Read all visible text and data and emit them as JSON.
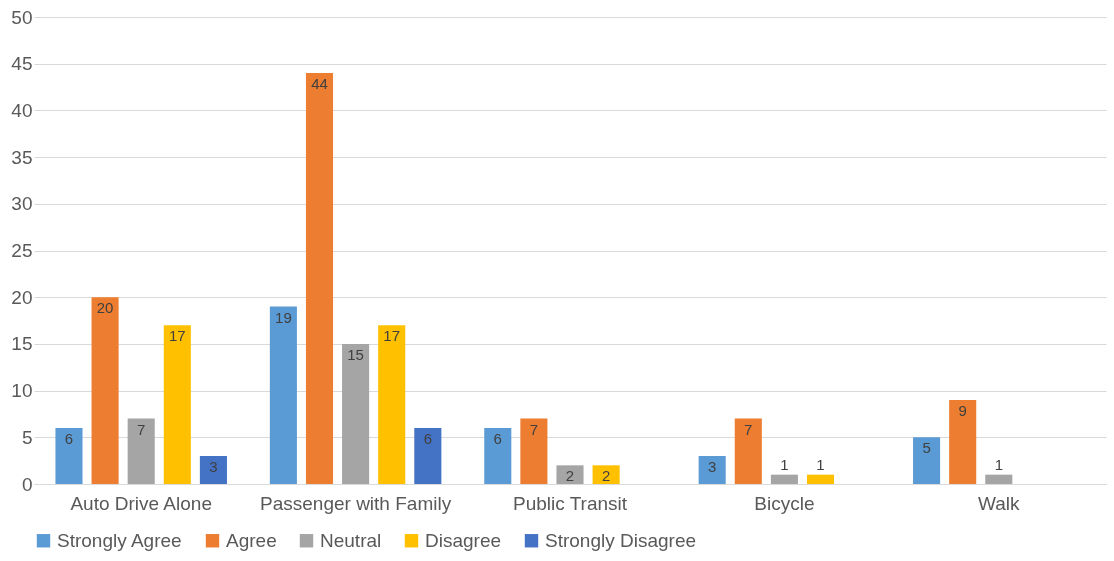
{
  "chart_data": {
    "type": "bar",
    "categories": [
      "Auto Drive Alone",
      "Passenger with Family",
      "Public Transit",
      "Bicycle",
      "Walk"
    ],
    "series": [
      {
        "name": "Strongly Agree",
        "color": "#5b9bd5",
        "values": [
          6,
          19,
          6,
          3,
          5
        ]
      },
      {
        "name": "Agree",
        "color": "#ed7d31",
        "values": [
          20,
          44,
          7,
          7,
          9
        ]
      },
      {
        "name": "Neutral",
        "color": "#a5a5a5",
        "values": [
          7,
          15,
          2,
          1,
          1
        ]
      },
      {
        "name": "Disagree",
        "color": "#ffc000",
        "values": [
          17,
          17,
          2,
          1,
          null
        ]
      },
      {
        "name": "Strongly Disagree",
        "color": "#4472c4",
        "values": [
          3,
          6,
          null,
          null,
          null
        ]
      }
    ],
    "ylim": [
      0,
      50
    ],
    "yticks": [
      0,
      5,
      10,
      15,
      20,
      25,
      30,
      35,
      40,
      45,
      50
    ],
    "grid": "y",
    "legend": "bottom",
    "data_labels": true
  }
}
